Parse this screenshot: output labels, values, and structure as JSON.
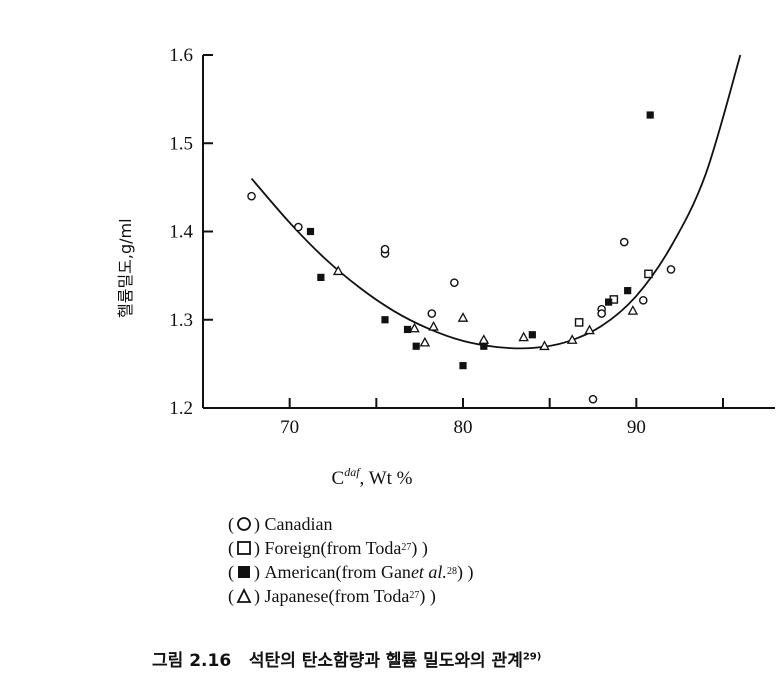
{
  "chart_data": {
    "type": "scatter",
    "title": "",
    "xlabel": "C",
    "xlabel_superscript": "daf",
    "xlabel_suffix": ", Wt %",
    "ylabel": "헬륨밀도,g/ml",
    "xlim": [
      65,
      98
    ],
    "ylim": [
      1.2,
      1.6
    ],
    "xticks": [
      "70",
      "80",
      "90"
    ],
    "yticks": [
      "1.2",
      "1.3",
      "1.4",
      "1.5",
      "1.6"
    ],
    "xtick_values": [
      70,
      80,
      90
    ],
    "ytick_values": [
      1.2,
      1.3,
      1.4,
      1.5,
      1.6
    ],
    "grid": false,
    "legend_position": "bottom",
    "series": [
      {
        "name": "Canadian",
        "marker": "circle-open",
        "points": [
          [
            67.8,
            1.44
          ],
          [
            70.5,
            1.405
          ],
          [
            75.5,
            1.375
          ],
          [
            75.5,
            1.38
          ],
          [
            79.5,
            1.342
          ],
          [
            78.2,
            1.307
          ],
          [
            81.2,
            1.274
          ],
          [
            87.5,
            1.21
          ],
          [
            88.0,
            1.312
          ],
          [
            88.0,
            1.307
          ],
          [
            89.3,
            1.388
          ],
          [
            90.4,
            1.322
          ],
          [
            92.0,
            1.357
          ]
        ]
      },
      {
        "name": "Foreign(from Toda",
        "name_ref": "27",
        "name_suffix": ")",
        "marker": "square-open",
        "points": [
          [
            86.7,
            1.297
          ],
          [
            88.7,
            1.323
          ],
          [
            90.7,
            1.352
          ]
        ]
      },
      {
        "name": "American(from Gan ",
        "name_italic": "et al.",
        "name_ref": "28",
        "name_suffix": ")",
        "marker": "square-filled",
        "points": [
          [
            71.2,
            1.4
          ],
          [
            71.8,
            1.348
          ],
          [
            75.5,
            1.3
          ],
          [
            76.8,
            1.289
          ],
          [
            77.3,
            1.27
          ],
          [
            80.0,
            1.248
          ],
          [
            81.2,
            1.27
          ],
          [
            84.0,
            1.283
          ],
          [
            88.4,
            1.32
          ],
          [
            89.5,
            1.333
          ],
          [
            90.8,
            1.532
          ]
        ]
      },
      {
        "name": "Japanese(from Toda",
        "name_ref": "27",
        "name_suffix": ")",
        "marker": "triangle-open",
        "points": [
          [
            72.8,
            1.355
          ],
          [
            77.2,
            1.29
          ],
          [
            77.8,
            1.274
          ],
          [
            78.3,
            1.292
          ],
          [
            80.0,
            1.302
          ],
          [
            81.2,
            1.277
          ],
          [
            83.5,
            1.28
          ],
          [
            84.7,
            1.27
          ],
          [
            86.3,
            1.277
          ],
          [
            87.3,
            1.288
          ],
          [
            89.8,
            1.31
          ]
        ]
      }
    ],
    "fit_curve": [
      [
        67.8,
        1.46
      ],
      [
        70,
        1.41
      ],
      [
        72,
        1.37
      ],
      [
        74,
        1.337
      ],
      [
        76,
        1.31
      ],
      [
        78,
        1.29
      ],
      [
        80,
        1.276
      ],
      [
        82,
        1.269
      ],
      [
        84,
        1.268
      ],
      [
        86,
        1.275
      ],
      [
        88,
        1.293
      ],
      [
        90,
        1.327
      ],
      [
        92,
        1.383
      ],
      [
        94,
        1.465
      ],
      [
        96,
        1.6
      ]
    ]
  },
  "caption": {
    "prefix": "그림 2.16",
    "text": "석탄의 탄소함량과 헬륨 밀도와의 관계",
    "ref": "29)"
  }
}
